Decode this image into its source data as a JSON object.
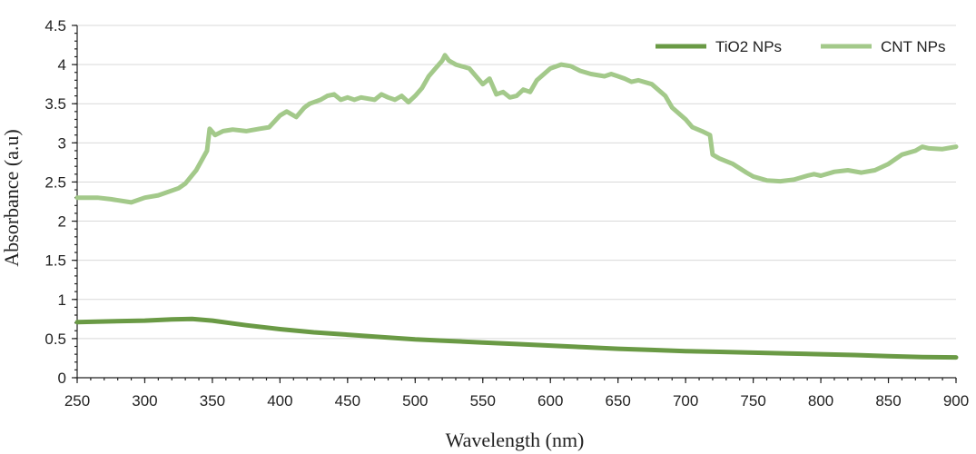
{
  "chart_data": {
    "type": "line",
    "title": "",
    "xlabel": "Wavelength (nm)",
    "ylabel": "Absorbance (a.u)",
    "xlim": [
      250,
      900
    ],
    "ylim": [
      0,
      4.5
    ],
    "x_ticks": [
      "250",
      "300",
      "350",
      "400",
      "450",
      "500",
      "550",
      "600",
      "650",
      "700",
      "750",
      "800",
      "850",
      "900"
    ],
    "y_ticks": [
      "0",
      "0.5",
      "1",
      "1.5",
      "2",
      "2.5",
      "3",
      "3.5",
      "4",
      "4.5"
    ],
    "grid": "horizontal",
    "legend_position": "top-right",
    "series": [
      {
        "name": "TiO2 NPs",
        "color": "#6a9a45",
        "x": [
          250,
          275,
          300,
          320,
          335,
          350,
          375,
          400,
          425,
          450,
          475,
          500,
          525,
          550,
          575,
          600,
          625,
          650,
          675,
          700,
          725,
          750,
          775,
          800,
          825,
          850,
          875,
          900
        ],
        "y": [
          0.71,
          0.72,
          0.73,
          0.745,
          0.75,
          0.73,
          0.67,
          0.62,
          0.58,
          0.55,
          0.52,
          0.49,
          0.47,
          0.45,
          0.43,
          0.41,
          0.39,
          0.37,
          0.355,
          0.34,
          0.33,
          0.32,
          0.31,
          0.3,
          0.29,
          0.275,
          0.265,
          0.26
        ]
      },
      {
        "name": "CNT NPs",
        "color": "#a3c98a",
        "x": [
          250,
          265,
          275,
          290,
          300,
          310,
          325,
          330,
          338,
          346,
          348,
          352,
          358,
          365,
          375,
          385,
          392,
          400,
          405,
          412,
          418,
          422,
          430,
          435,
          440,
          445,
          450,
          455,
          460,
          470,
          475,
          480,
          485,
          490,
          495,
          500,
          505,
          510,
          515,
          520,
          522,
          525,
          530,
          540,
          545,
          550,
          555,
          560,
          565,
          570,
          575,
          580,
          585,
          590,
          600,
          608,
          615,
          622,
          630,
          640,
          645,
          650,
          655,
          660,
          665,
          675,
          685,
          690,
          700,
          705,
          712,
          718,
          720,
          725,
          735,
          745,
          750,
          760,
          770,
          780,
          790,
          795,
          800,
          810,
          820,
          830,
          840,
          850,
          860,
          870,
          875,
          880,
          890,
          900
        ],
        "y": [
          2.3,
          2.3,
          2.28,
          2.24,
          2.3,
          2.33,
          2.42,
          2.48,
          2.65,
          2.9,
          3.18,
          3.1,
          3.15,
          3.17,
          3.15,
          3.18,
          3.2,
          3.35,
          3.4,
          3.33,
          3.45,
          3.5,
          3.55,
          3.6,
          3.62,
          3.55,
          3.58,
          3.55,
          3.58,
          3.55,
          3.62,
          3.58,
          3.55,
          3.6,
          3.52,
          3.6,
          3.7,
          3.85,
          3.95,
          4.05,
          4.12,
          4.05,
          4.0,
          3.95,
          3.85,
          3.75,
          3.82,
          3.62,
          3.65,
          3.58,
          3.6,
          3.68,
          3.65,
          3.8,
          3.95,
          4.0,
          3.98,
          3.92,
          3.88,
          3.85,
          3.88,
          3.85,
          3.82,
          3.78,
          3.8,
          3.75,
          3.6,
          3.45,
          3.3,
          3.2,
          3.15,
          3.1,
          2.85,
          2.8,
          2.73,
          2.62,
          2.57,
          2.52,
          2.51,
          2.53,
          2.58,
          2.6,
          2.58,
          2.63,
          2.65,
          2.62,
          2.65,
          2.73,
          2.85,
          2.9,
          2.95,
          2.93,
          2.92,
          2.95
        ]
      }
    ]
  }
}
